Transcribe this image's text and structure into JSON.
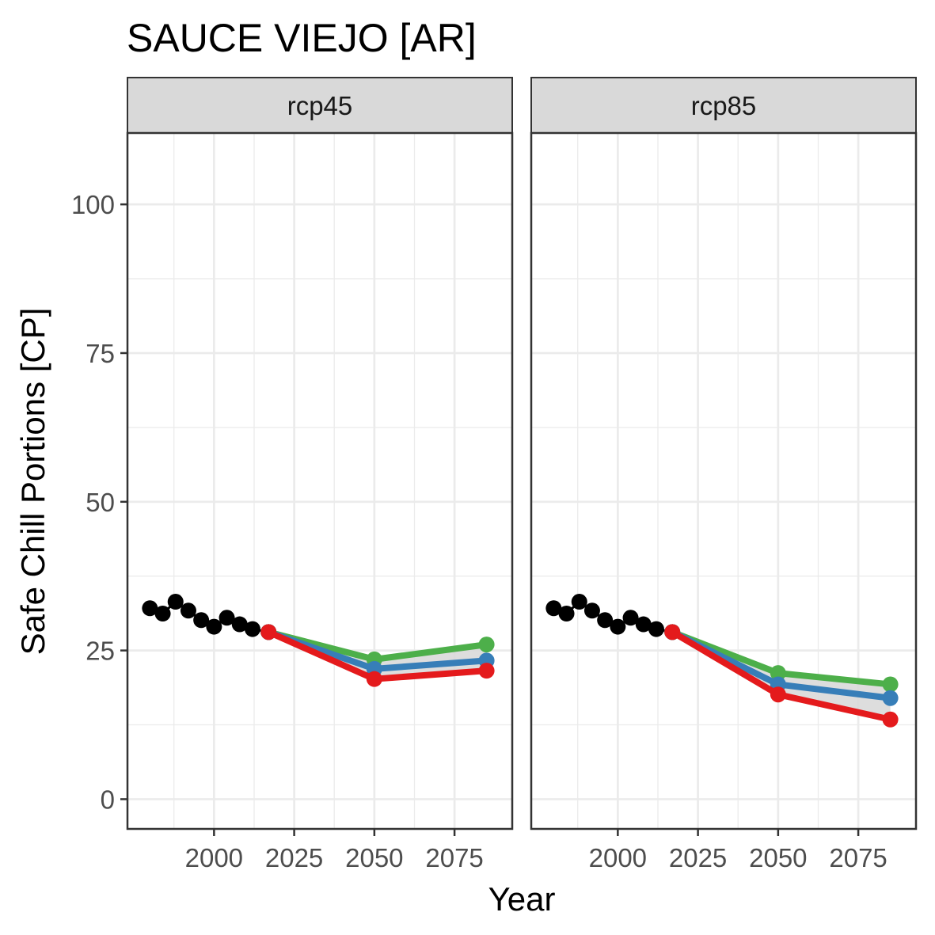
{
  "chart_data": {
    "type": "line",
    "title": "SAUCE VIEJO [AR]",
    "xlabel": "Year",
    "ylabel": "Safe Chill Portions [CP]",
    "xlim": [
      1973,
      2093
    ],
    "ylim": [
      -5,
      112
    ],
    "x_ticks": [
      2000,
      2025,
      2050,
      2075
    ],
    "x_tick_labels": [
      "2000",
      "2025",
      "2050",
      "2075"
    ],
    "y_ticks": [
      0,
      25,
      50,
      75,
      100
    ],
    "y_tick_labels": [
      "0",
      "25",
      "50",
      "75",
      "100"
    ],
    "grid": true,
    "legend": "none",
    "colors": {
      "historic": "#000000",
      "optimistic": "#4DAF4A",
      "intermediate": "#377EB8",
      "pessimistic": "#E41A1C",
      "ribbon": "#d9d9d9"
    },
    "panels": [
      {
        "label": "rcp45",
        "historic": {
          "x": [
            1980,
            1984,
            1988,
            1992,
            1996,
            2000,
            2004,
            2008,
            2012,
            2017
          ],
          "y": [
            32.1,
            31.2,
            33.2,
            31.7,
            30.1,
            29.0,
            30.5,
            29.4,
            28.6,
            28.1
          ]
        },
        "series": [
          {
            "key": "optimistic",
            "x": [
              2017,
              2050,
              2085
            ],
            "y": [
              28.1,
              23.5,
              26.0
            ]
          },
          {
            "key": "intermediate",
            "x": [
              2017,
              2050,
              2085
            ],
            "y": [
              28.1,
              21.9,
              23.3
            ]
          },
          {
            "key": "pessimistic",
            "x": [
              2017,
              2050,
              2085
            ],
            "y": [
              28.1,
              20.2,
              21.6
            ]
          }
        ]
      },
      {
        "label": "rcp85",
        "historic": {
          "x": [
            1980,
            1984,
            1988,
            1992,
            1996,
            2000,
            2004,
            2008,
            2012,
            2017
          ],
          "y": [
            32.1,
            31.2,
            33.2,
            31.7,
            30.1,
            29.0,
            30.5,
            29.4,
            28.6,
            28.1
          ]
        },
        "series": [
          {
            "key": "optimistic",
            "x": [
              2017,
              2050,
              2085
            ],
            "y": [
              28.1,
              21.2,
              19.3
            ]
          },
          {
            "key": "intermediate",
            "x": [
              2017,
              2050,
              2085
            ],
            "y": [
              28.1,
              19.3,
              17.0
            ]
          },
          {
            "key": "pessimistic",
            "x": [
              2017,
              2050,
              2085
            ],
            "y": [
              28.1,
              17.6,
              13.4
            ]
          }
        ]
      }
    ]
  }
}
